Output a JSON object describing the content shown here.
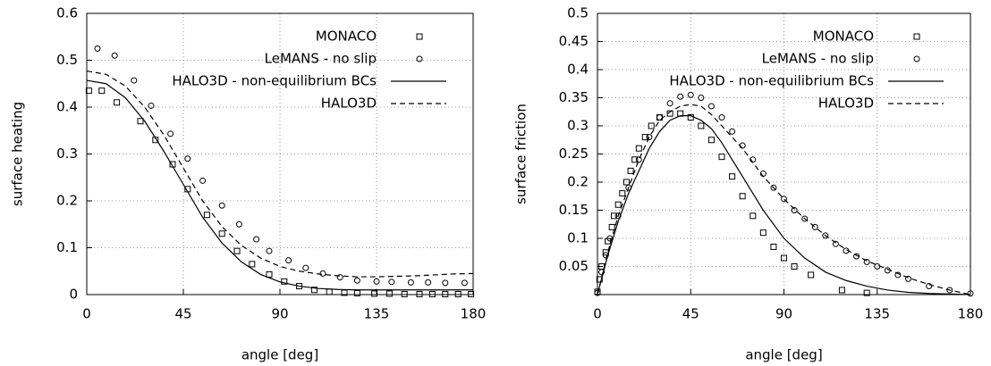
{
  "chart_data": [
    {
      "type": "line",
      "xlabel": "angle [deg]",
      "ylabel": "surface heating",
      "xlim": [
        0,
        180
      ],
      "ylim": [
        0,
        0.6
      ],
      "xticks": [
        0,
        45,
        90,
        135,
        180
      ],
      "yticks": [
        0,
        0.1,
        0.2,
        0.3,
        0.4,
        0.5,
        0.6
      ],
      "grid": true,
      "legend": "upper right",
      "series": [
        {
          "name": "MONACO",
          "color": "#000000",
          "marker": "square",
          "x": [
            1,
            7,
            14,
            25,
            32,
            40,
            47,
            56,
            63,
            70,
            77,
            85,
            92,
            99,
            106,
            113,
            120,
            126,
            134,
            141,
            148,
            155,
            161,
            167,
            173,
            179
          ],
          "values": [
            0.435,
            0.435,
            0.41,
            0.37,
            0.33,
            0.278,
            0.225,
            0.17,
            0.13,
            0.093,
            0.065,
            0.043,
            0.028,
            0.018,
            0.01,
            0.006,
            0.004,
            0.003,
            0.002,
            0.002,
            0.001,
            0.001,
            0.001,
            0.001,
            0.001,
            0.001
          ]
        },
        {
          "name": "LeMANS - no slip",
          "color": "#000000",
          "marker": "circle",
          "x": [
            5,
            13,
            22,
            30,
            39,
            47,
            54,
            63,
            71,
            79,
            85,
            94,
            102,
            110,
            118,
            126,
            135,
            142,
            151,
            159,
            167,
            176
          ],
          "values": [
            0.525,
            0.51,
            0.457,
            0.403,
            0.343,
            0.29,
            0.243,
            0.19,
            0.15,
            0.118,
            0.093,
            0.073,
            0.057,
            0.045,
            0.037,
            0.03,
            0.028,
            0.027,
            0.026,
            0.026,
            0.025,
            0.025
          ]
        },
        {
          "name": "HALO3D - non-equilibrium BCs",
          "color": "#000000",
          "linestyle": "solid",
          "x": [
            0,
            9,
            18,
            27,
            36,
            45,
            54,
            63,
            72,
            81,
            90,
            99,
            108,
            117,
            126,
            135,
            144,
            153,
            162,
            171,
            180
          ],
          "values": [
            0.457,
            0.45,
            0.42,
            0.37,
            0.305,
            0.235,
            0.165,
            0.11,
            0.07,
            0.043,
            0.027,
            0.018,
            0.013,
            0.011,
            0.01,
            0.01,
            0.01,
            0.01,
            0.01,
            0.01,
            0.01
          ]
        },
        {
          "name": "HALO3D",
          "color": "#000000",
          "linestyle": "dashed",
          "x": [
            0,
            9,
            18,
            27,
            36,
            45,
            54,
            63,
            72,
            81,
            90,
            99,
            108,
            117,
            126,
            135,
            144,
            153,
            162,
            171,
            180
          ],
          "values": [
            0.477,
            0.47,
            0.445,
            0.4,
            0.34,
            0.27,
            0.2,
            0.145,
            0.105,
            0.078,
            0.06,
            0.05,
            0.044,
            0.04,
            0.038,
            0.038,
            0.039,
            0.04,
            0.042,
            0.044,
            0.045
          ]
        }
      ]
    },
    {
      "type": "line",
      "xlabel": "angle [deg]",
      "ylabel": "surface friction",
      "xlim": [
        0,
        180
      ],
      "ylim": [
        0,
        0.5
      ],
      "xticks": [
        0,
        45,
        90,
        135,
        180
      ],
      "yticks": [
        0.05,
        0.1,
        0.15,
        0.2,
        0.25,
        0.3,
        0.35,
        0.4,
        0.45,
        0.5
      ],
      "grid": true,
      "legend": "upper right",
      "series": [
        {
          "name": "MONACO",
          "color": "#000000",
          "marker": "square",
          "x": [
            0,
            1,
            2,
            4,
            5,
            7,
            8,
            10,
            12,
            14,
            16,
            18,
            20,
            23,
            26,
            30,
            35,
            40,
            45,
            50,
            55,
            60,
            65,
            70,
            75,
            80,
            85,
            90,
            95,
            103,
            118,
            130
          ],
          "values": [
            0.005,
            0.027,
            0.05,
            0.075,
            0.095,
            0.12,
            0.14,
            0.16,
            0.18,
            0.2,
            0.22,
            0.24,
            0.26,
            0.28,
            0.3,
            0.315,
            0.322,
            0.322,
            0.315,
            0.3,
            0.275,
            0.245,
            0.21,
            0.175,
            0.14,
            0.11,
            0.085,
            0.065,
            0.05,
            0.035,
            0.008,
            0.003
          ]
        },
        {
          "name": "LeMANS - no slip",
          "color": "#000000",
          "marker": "circle",
          "x": [
            0,
            2,
            4,
            6,
            10,
            15,
            20,
            25,
            30,
            35,
            40,
            45,
            50,
            55,
            60,
            65,
            70,
            75,
            80,
            85,
            90,
            95,
            100,
            105,
            110,
            115,
            120,
            125,
            130,
            135,
            140,
            145,
            150,
            160,
            170,
            180
          ],
          "values": [
            0.003,
            0.04,
            0.07,
            0.1,
            0.14,
            0.19,
            0.24,
            0.28,
            0.315,
            0.34,
            0.352,
            0.355,
            0.35,
            0.335,
            0.315,
            0.29,
            0.265,
            0.24,
            0.215,
            0.19,
            0.17,
            0.15,
            0.135,
            0.12,
            0.105,
            0.09,
            0.078,
            0.068,
            0.058,
            0.05,
            0.043,
            0.035,
            0.028,
            0.015,
            0.008,
            0.002
          ]
        },
        {
          "name": "HALO3D - non-equilibrium BCs",
          "color": "#000000",
          "linestyle": "solid",
          "x": [
            0,
            5,
            10,
            15,
            20,
            25,
            30,
            35,
            40,
            45,
            50,
            55,
            60,
            65,
            70,
            75,
            80,
            90,
            100,
            110,
            120,
            130,
            140,
            150,
            160,
            170,
            180
          ],
          "values": [
            0,
            0.07,
            0.13,
            0.18,
            0.22,
            0.26,
            0.29,
            0.31,
            0.318,
            0.318,
            0.31,
            0.295,
            0.27,
            0.24,
            0.21,
            0.18,
            0.15,
            0.1,
            0.065,
            0.04,
            0.025,
            0.015,
            0.008,
            0.004,
            0.002,
            0.001,
            0
          ]
        },
        {
          "name": "HALO3D",
          "color": "#000000",
          "linestyle": "dashed",
          "x": [
            0,
            5,
            10,
            15,
            20,
            25,
            30,
            35,
            40,
            45,
            50,
            55,
            60,
            65,
            70,
            75,
            80,
            90,
            100,
            110,
            120,
            130,
            140,
            150,
            160,
            170,
            180
          ],
          "values": [
            0,
            0.075,
            0.14,
            0.19,
            0.24,
            0.28,
            0.31,
            0.325,
            0.335,
            0.338,
            0.335,
            0.32,
            0.3,
            0.28,
            0.26,
            0.235,
            0.21,
            0.17,
            0.135,
            0.105,
            0.08,
            0.06,
            0.045,
            0.03,
            0.018,
            0.008,
            0
          ]
        }
      ]
    }
  ]
}
